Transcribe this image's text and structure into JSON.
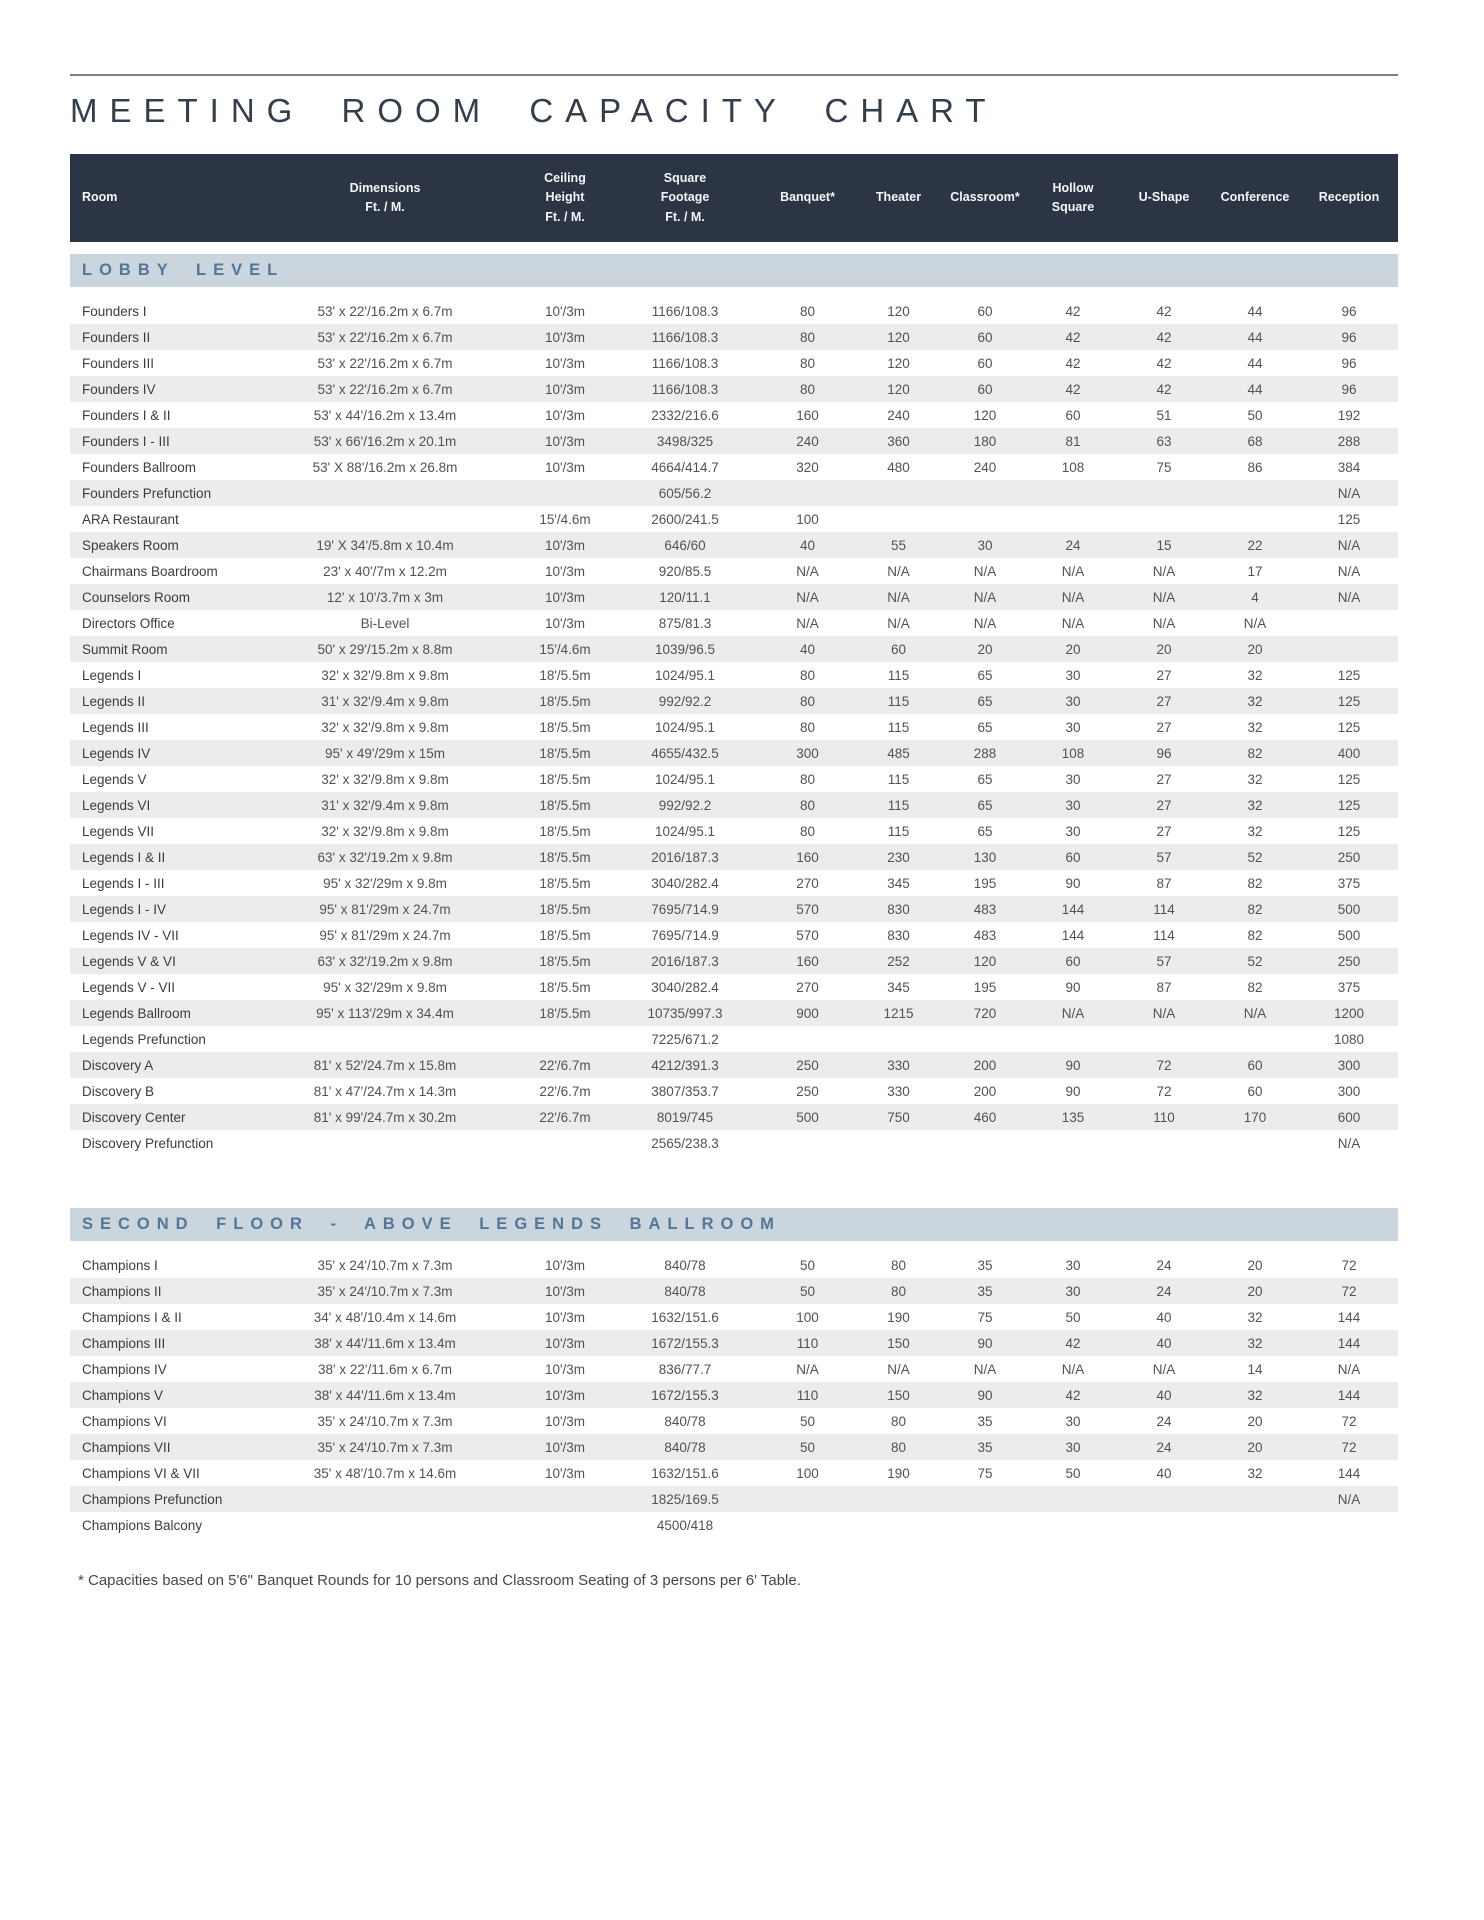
{
  "page": {
    "title": "MEETING ROOM CAPACITY CHART",
    "footnote": "* Capacities based on 5'6\" Banquet Rounds for 10 persons and Classroom Seating of 3 persons per 6' Table."
  },
  "colors": {
    "header_background": "#2b3543",
    "header_text": "#f5f6f8",
    "section_band_background": "#cbd5de",
    "section_band_text": "#547697",
    "alt_row_background": "#ececec",
    "body_text": "#525255"
  },
  "table": {
    "headers": [
      [
        "Room"
      ],
      [
        "Dimensions",
        "Ft. / M."
      ],
      [
        "Ceiling",
        "Height",
        "Ft. / M."
      ],
      [
        "Square",
        "Footage",
        "Ft. / M."
      ],
      [
        "Banquet*"
      ],
      [
        "Theater"
      ],
      [
        "Classroom*"
      ],
      [
        "Hollow",
        "Square"
      ],
      [
        "U-Shape"
      ],
      [
        "Conference"
      ],
      [
        "Reception"
      ]
    ],
    "sections": [
      {
        "title": "LOBBY LEVEL",
        "rows": [
          [
            "Founders I",
            "53' x 22'/16.2m x 6.7m",
            "10'/3m",
            "1166/108.3",
            "80",
            "120",
            "60",
            "42",
            "42",
            "44",
            "96"
          ],
          [
            "Founders II",
            "53' x 22'/16.2m x 6.7m",
            "10'/3m",
            "1166/108.3",
            "80",
            "120",
            "60",
            "42",
            "42",
            "44",
            "96"
          ],
          [
            "Founders III",
            "53' x 22'/16.2m x 6.7m",
            "10'/3m",
            "1166/108.3",
            "80",
            "120",
            "60",
            "42",
            "42",
            "44",
            "96"
          ],
          [
            "Founders IV",
            "53' x 22'/16.2m x 6.7m",
            "10'/3m",
            "1166/108.3",
            "80",
            "120",
            "60",
            "42",
            "42",
            "44",
            "96"
          ],
          [
            "Founders I & II",
            "53' x 44'/16.2m x 13.4m",
            "10'/3m",
            "2332/216.6",
            "160",
            "240",
            "120",
            "60",
            "51",
            "50",
            "192"
          ],
          [
            "Founders I - III",
            "53' x 66'/16.2m x 20.1m",
            "10'/3m",
            "3498/325",
            "240",
            "360",
            "180",
            "81",
            "63",
            "68",
            "288"
          ],
          [
            "Founders Ballroom",
            "53' X 88'/16.2m x 26.8m",
            "10'/3m",
            "4664/414.7",
            "320",
            "480",
            "240",
            "108",
            "75",
            "86",
            "384"
          ],
          [
            "Founders Prefunction",
            "",
            "",
            "605/56.2",
            "",
            "",
            "",
            "",
            "",
            "",
            "N/A"
          ],
          [
            "ARA Restaurant",
            "",
            "15'/4.6m",
            "2600/241.5",
            "100",
            "",
            "",
            "",
            "",
            "",
            "125"
          ],
          [
            "Speakers Room",
            "19' X 34'/5.8m x 10.4m",
            "10'/3m",
            "646/60",
            "40",
            "55",
            "30",
            "24",
            "15",
            "22",
            "N/A"
          ],
          [
            "Chairmans Boardroom",
            "23' x 40'/7m x 12.2m",
            "10'/3m",
            "920/85.5",
            "N/A",
            "N/A",
            "N/A",
            "N/A",
            "N/A",
            "17",
            "N/A"
          ],
          [
            "Counselors Room",
            "12' x 10'/3.7m x 3m",
            "10'/3m",
            "120/11.1",
            "N/A",
            "N/A",
            "N/A",
            "N/A",
            "N/A",
            "4",
            "N/A"
          ],
          [
            "Directors Office",
            "Bi-Level",
            "10'/3m",
            "875/81.3",
            "N/A",
            "N/A",
            "N/A",
            "N/A",
            "N/A",
            "N/A",
            ""
          ],
          [
            "Summit Room",
            "50' x 29'/15.2m x 8.8m",
            "15'/4.6m",
            "1039/96.5",
            "40",
            "60",
            "20",
            "20",
            "20",
            "20",
            ""
          ],
          [
            "Legends I",
            "32' x 32'/9.8m x 9.8m",
            "18'/5.5m",
            "1024/95.1",
            "80",
            "115",
            "65",
            "30",
            "27",
            "32",
            "125"
          ],
          [
            "Legends II",
            "31' x 32'/9.4m x 9.8m",
            "18'/5.5m",
            "992/92.2",
            "80",
            "115",
            "65",
            "30",
            "27",
            "32",
            "125"
          ],
          [
            "Legends III",
            "32' x 32'/9.8m x 9.8m",
            "18'/5.5m",
            "1024/95.1",
            "80",
            "115",
            "65",
            "30",
            "27",
            "32",
            "125"
          ],
          [
            "Legends IV",
            "95' x 49'/29m x 15m",
            "18'/5.5m",
            "4655/432.5",
            "300",
            "485",
            "288",
            "108",
            "96",
            "82",
            "400"
          ],
          [
            "Legends V",
            "32' x 32'/9.8m x 9.8m",
            "18'/5.5m",
            "1024/95.1",
            "80",
            "115",
            "65",
            "30",
            "27",
            "32",
            "125"
          ],
          [
            "Legends VI",
            "31' x 32'/9.4m x 9.8m",
            "18'/5.5m",
            "992/92.2",
            "80",
            "115",
            "65",
            "30",
            "27",
            "32",
            "125"
          ],
          [
            "Legends VII",
            "32' x 32'/9.8m x 9.8m",
            "18'/5.5m",
            "1024/95.1",
            "80",
            "115",
            "65",
            "30",
            "27",
            "32",
            "125"
          ],
          [
            "Legends I & II",
            "63' x 32'/19.2m x 9.8m",
            "18'/5.5m",
            "2016/187.3",
            "160",
            "230",
            "130",
            "60",
            "57",
            "52",
            "250"
          ],
          [
            "Legends I - III",
            "95' x 32'/29m x 9.8m",
            "18'/5.5m",
            "3040/282.4",
            "270",
            "345",
            "195",
            "90",
            "87",
            "82",
            "375"
          ],
          [
            "Legends I - IV",
            "95' x 81'/29m x 24.7m",
            "18'/5.5m",
            "7695/714.9",
            "570",
            "830",
            "483",
            "144",
            "114",
            "82",
            "500"
          ],
          [
            "Legends IV - VII",
            "95' x 81'/29m x 24.7m",
            "18'/5.5m",
            "7695/714.9",
            "570",
            "830",
            "483",
            "144",
            "114",
            "82",
            "500"
          ],
          [
            "Legends V & VI",
            "63' x 32'/19.2m x 9.8m",
            "18'/5.5m",
            "2016/187.3",
            "160",
            "252",
            "120",
            "60",
            "57",
            "52",
            "250"
          ],
          [
            "Legends V - VII",
            "95' x 32'/29m x 9.8m",
            "18'/5.5m",
            "3040/282.4",
            "270",
            "345",
            "195",
            "90",
            "87",
            "82",
            "375"
          ],
          [
            "Legends Ballroom",
            "95' x 113'/29m x 34.4m",
            "18'/5.5m",
            "10735/997.3",
            "900",
            "1215",
            "720",
            "N/A",
            "N/A",
            "N/A",
            "1200"
          ],
          [
            "Legends Prefunction",
            "",
            "",
            "7225/671.2",
            "",
            "",
            "",
            "",
            "",
            "",
            "1080"
          ],
          [
            "Discovery A",
            "81' x 52'/24.7m x 15.8m",
            "22'/6.7m",
            "4212/391.3",
            "250",
            "330",
            "200",
            "90",
            "72",
            "60",
            "300"
          ],
          [
            "Discovery B",
            "81' x 47'/24.7m x 14.3m",
            "22'/6.7m",
            "3807/353.7",
            "250",
            "330",
            "200",
            "90",
            "72",
            "60",
            "300"
          ],
          [
            "Discovery Center",
            "81' x 99'/24.7m x 30.2m",
            "22'/6.7m",
            "8019/745",
            "500",
            "750",
            "460",
            "135",
            "110",
            "170",
            "600"
          ],
          [
            "Discovery Prefunction",
            "",
            "",
            "2565/238.3",
            "",
            "",
            "",
            "",
            "",
            "",
            "N/A"
          ]
        ]
      },
      {
        "title": "SECOND FLOOR - ABOVE LEGENDS BALLROOM",
        "rows": [
          [
            "Champions I",
            "35' x 24'/10.7m x 7.3m",
            "10'/3m",
            "840/78",
            "50",
            "80",
            "35",
            "30",
            "24",
            "20",
            "72"
          ],
          [
            "Champions II",
            "35' x 24'/10.7m x 7.3m",
            "10'/3m",
            "840/78",
            "50",
            "80",
            "35",
            "30",
            "24",
            "20",
            "72"
          ],
          [
            "Champions I & II",
            "34' x 48'/10.4m x 14.6m",
            "10'/3m",
            "1632/151.6",
            "100",
            "190",
            "75",
            "50",
            "40",
            "32",
            "144"
          ],
          [
            "Champions III",
            "38' x 44'/11.6m x 13.4m",
            "10'/3m",
            "1672/155.3",
            "110",
            "150",
            "90",
            "42",
            "40",
            "32",
            "144"
          ],
          [
            "Champions IV",
            "38' x 22'/11.6m x 6.7m",
            "10'/3m",
            "836/77.7",
            "N/A",
            "N/A",
            "N/A",
            "N/A",
            "N/A",
            "14",
            "N/A"
          ],
          [
            "Champions V",
            "38' x 44'/11.6m x 13.4m",
            "10'/3m",
            "1672/155.3",
            "110",
            "150",
            "90",
            "42",
            "40",
            "32",
            "144"
          ],
          [
            "Champions VI",
            "35' x 24'/10.7m x 7.3m",
            "10'/3m",
            "840/78",
            "50",
            "80",
            "35",
            "30",
            "24",
            "20",
            "72"
          ],
          [
            "Champions VII",
            "35' x 24'/10.7m x 7.3m",
            "10'/3m",
            "840/78",
            "50",
            "80",
            "35",
            "30",
            "24",
            "20",
            "72"
          ],
          [
            "Champions VI & VII",
            "35' x 48'/10.7m x 14.6m",
            "10'/3m",
            "1632/151.6",
            "100",
            "190",
            "75",
            "50",
            "40",
            "32",
            "144"
          ],
          [
            "Champions Prefunction",
            "",
            "",
            "1825/169.5",
            "",
            "",
            "",
            "",
            "",
            "",
            "N/A"
          ],
          [
            "Champions Balcony",
            "",
            "",
            "4500/418",
            "",
            "",
            "",
            "",
            "",
            "",
            ""
          ]
        ]
      }
    ]
  }
}
